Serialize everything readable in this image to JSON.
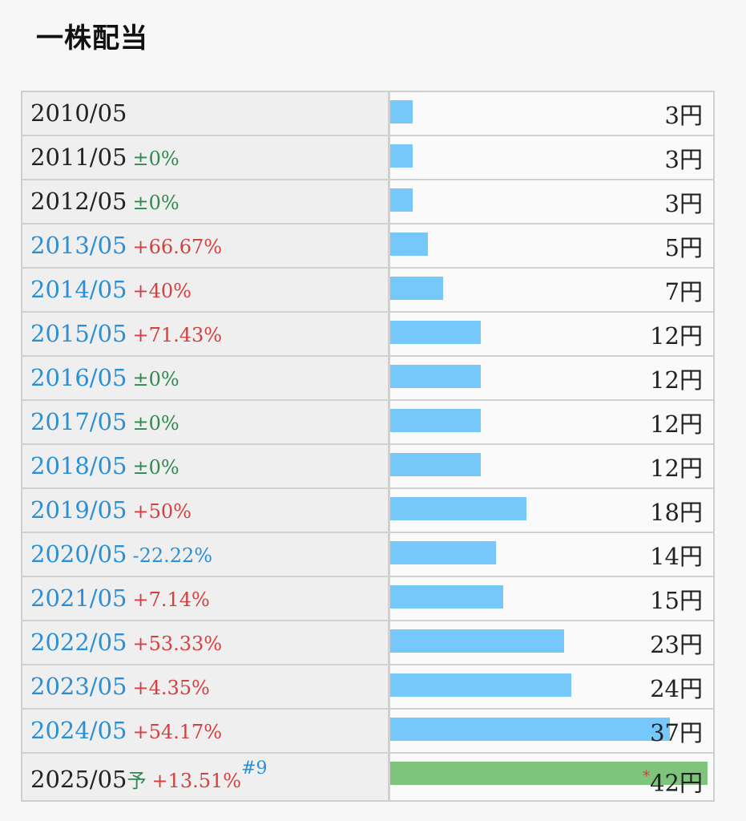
{
  "title": "一株配当",
  "unit": "円",
  "chart_data": {
    "type": "bar",
    "title": "一株配当",
    "orientation": "horizontal",
    "xmax": 42,
    "rows": [
      {
        "period": "2010/05",
        "change": "",
        "change_type": "none",
        "value": 3,
        "value_label": "3",
        "highlight": false,
        "forecast": false
      },
      {
        "period": "2011/05",
        "change": "±0%",
        "change_type": "flat",
        "value": 3,
        "value_label": "3",
        "highlight": false,
        "forecast": false
      },
      {
        "period": "2012/05",
        "change": "±0%",
        "change_type": "flat",
        "value": 3,
        "value_label": "3",
        "highlight": false,
        "forecast": false
      },
      {
        "period": "2013/05",
        "change": "+66.67%",
        "change_type": "up",
        "value": 5,
        "value_label": "5",
        "highlight": true,
        "forecast": false
      },
      {
        "period": "2014/05",
        "change": "+40%",
        "change_type": "up",
        "value": 7,
        "value_label": "7",
        "highlight": true,
        "forecast": false
      },
      {
        "period": "2015/05",
        "change": "+71.43%",
        "change_type": "up",
        "value": 12,
        "value_label": "12",
        "highlight": true,
        "forecast": false
      },
      {
        "period": "2016/05",
        "change": "±0%",
        "change_type": "flat",
        "value": 12,
        "value_label": "12",
        "highlight": true,
        "forecast": false
      },
      {
        "period": "2017/05",
        "change": "±0%",
        "change_type": "flat",
        "value": 12,
        "value_label": "12",
        "highlight": true,
        "forecast": false
      },
      {
        "period": "2018/05",
        "change": "±0%",
        "change_type": "flat",
        "value": 12,
        "value_label": "12",
        "highlight": true,
        "forecast": false
      },
      {
        "period": "2019/05",
        "change": "+50%",
        "change_type": "up",
        "value": 18,
        "value_label": "18",
        "highlight": true,
        "forecast": false
      },
      {
        "period": "2020/05",
        "change": "-22.22%",
        "change_type": "down",
        "value": 14,
        "value_label": "14",
        "highlight": true,
        "forecast": false
      },
      {
        "period": "2021/05",
        "change": "+7.14%",
        "change_type": "up",
        "value": 15,
        "value_label": "15",
        "highlight": true,
        "forecast": false
      },
      {
        "period": "2022/05",
        "change": "+53.33%",
        "change_type": "up",
        "value": 23,
        "value_label": "23",
        "highlight": true,
        "forecast": false
      },
      {
        "period": "2023/05",
        "change": "+4.35%",
        "change_type": "up",
        "value": 24,
        "value_label": "24",
        "highlight": true,
        "forecast": false
      },
      {
        "period": "2024/05",
        "change": "+54.17%",
        "change_type": "up",
        "value": 37,
        "value_label": "37",
        "highlight": true,
        "forecast": false
      },
      {
        "period": "2025/05",
        "forecast_mark": "予",
        "change": "+13.51%",
        "change_type": "up",
        "note": "#9",
        "value": 42,
        "value_label": "42",
        "value_prefix": "*",
        "highlight": false,
        "forecast": true
      }
    ]
  },
  "colors": {
    "bar": "#76c8fb",
    "forecast_bar": "#7ec47c",
    "up": "#d44040",
    "flat": "#2f8a4f",
    "down": "#2b8fd6",
    "period_highlight": "#2b8fd6"
  }
}
